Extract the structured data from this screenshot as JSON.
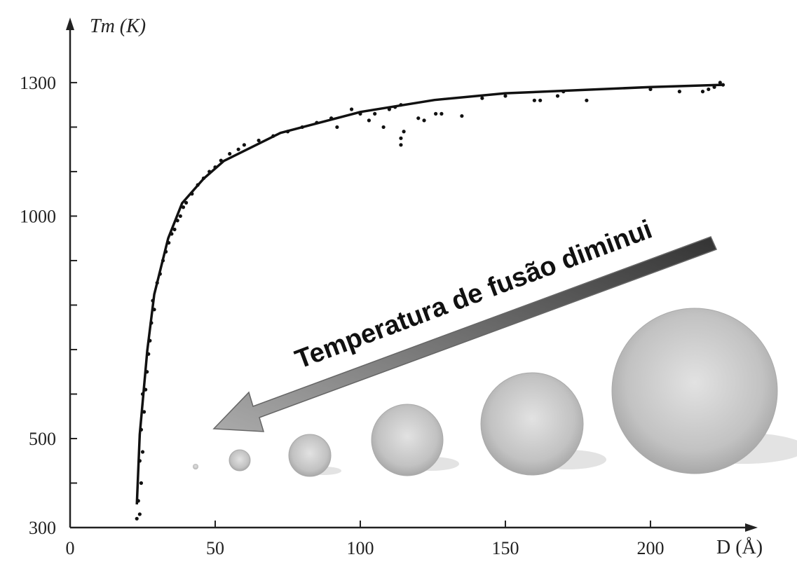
{
  "chart_data": {
    "type": "scatter",
    "y_label": "Tm (K)",
    "x_label": "D (Å)",
    "annotation": "Temperatura de fusão diminui",
    "xlim": [
      0,
      236
    ],
    "ylim": [
      300,
      1440
    ],
    "xticks": [
      0,
      50,
      100,
      150,
      200
    ],
    "yticks": [
      300,
      500,
      1000,
      1300
    ],
    "yminor_ticks": [
      400,
      600,
      700,
      800,
      900,
      1100,
      1200
    ],
    "color": "#111111",
    "points": {
      "x": [
        23,
        24,
        23.5,
        24.5,
        24,
        25,
        24.5,
        25.5,
        25,
        26,
        26.5,
        27,
        27.5,
        28,
        29,
        28.5,
        30,
        31,
        32,
        33,
        34,
        35,
        36,
        37,
        38,
        39,
        40,
        42,
        44,
        46,
        48,
        50,
        52,
        55,
        58,
        60,
        65,
        70,
        75,
        80,
        85,
        90,
        92,
        97,
        100,
        103,
        105,
        108,
        110,
        112,
        114,
        114,
        114,
        115,
        120,
        122,
        126,
        128,
        135,
        142,
        150,
        160,
        162,
        168,
        170,
        178,
        200,
        210,
        218,
        220,
        222,
        224,
        225
      ],
      "values": [
        320,
        330,
        360,
        400,
        450,
        470,
        520,
        560,
        600,
        610,
        650,
        690,
        720,
        760,
        790,
        810,
        850,
        870,
        900,
        920,
        940,
        960,
        970,
        990,
        1000,
        1020,
        1030,
        1050,
        1070,
        1085,
        1100,
        1110,
        1125,
        1140,
        1150,
        1160,
        1170,
        1180,
        1190,
        1200,
        1210,
        1220,
        1200,
        1240,
        1230,
        1215,
        1230,
        1200,
        1240,
        1245,
        1250,
        1175,
        1160,
        1190,
        1220,
        1215,
        1230,
        1230,
        1225,
        1265,
        1270,
        1260,
        1260,
        1270,
        1280,
        1260,
        1285,
        1280,
        1280,
        1285,
        1290,
        1300,
        1295
      ]
    },
    "fit": {
      "x": [
        23,
        24,
        26.6,
        29,
        33.8,
        38.6,
        46,
        53,
        72.5,
        100,
        125.6,
        150,
        200,
        224.6
      ],
      "values": [
        352,
        509,
        698,
        824,
        950,
        1029,
        1084,
        1124,
        1187,
        1234,
        1261,
        1276,
        1290,
        1295
      ]
    }
  }
}
